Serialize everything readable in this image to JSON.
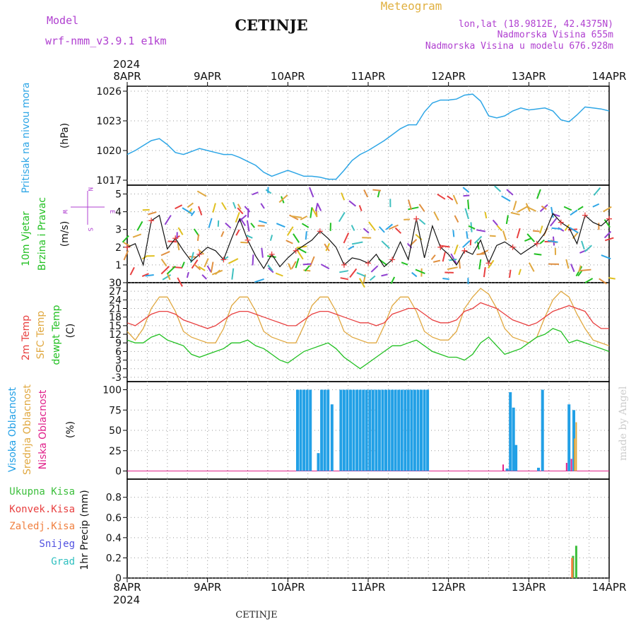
{
  "header": {
    "model_label": "Model",
    "model_value": "wrf-nmm_v3.9.1 e1km",
    "station": "CETINJE",
    "meteogram": "Meteogram",
    "lonlat": "lon,lat (18.9812E, 42.4375N)",
    "height": "Nadmorska Visina 655m",
    "model_height": "Nadmorska Visina u modelu 676.928m",
    "year": "2024",
    "footer_station": "CETINJE",
    "watermark": "made by Angel"
  },
  "axis": {
    "days": [
      "8APR",
      "9APR",
      "10APR",
      "11APR",
      "12APR",
      "13APR",
      "14APR"
    ]
  },
  "panels": {
    "pressure": {
      "label": "Pritisak na nivou mora",
      "unit": "(hPa)",
      "ticks": [
        "1017",
        "1020",
        "1023",
        "1026"
      ]
    },
    "wind": {
      "label1": "10m Vjetar",
      "label2": "Brzina i Pravac",
      "unit": "(m/s)",
      "ticks": [
        "0",
        "1",
        "2",
        "3",
        "4",
        "5"
      ],
      "compass": {
        "n": "N",
        "s": "S",
        "e": "E",
        "w": "W"
      }
    },
    "temp": {
      "label_2m": "2m Temp",
      "label_sfc": "SFC Temp",
      "label_dew": "dewpt Temp",
      "unit": "(C)",
      "ticks": [
        "-3",
        "0",
        "3",
        "6",
        "9",
        "12",
        "15",
        "18",
        "21",
        "24",
        "27",
        "30"
      ]
    },
    "cloud": {
      "label_high": "Visoka Oblacnost",
      "label_mid": "Srednja Oblacnost",
      "label_low": "Niska Oblacnost",
      "unit": "(%)",
      "ticks": [
        "0",
        "25",
        "50",
        "75",
        "100"
      ]
    },
    "precip": {
      "unit": "1hr Precip (mm)",
      "ticks": [
        "0",
        "0.2",
        "0.4",
        "0.6",
        "0.8"
      ],
      "legend": [
        "Ukupna Kisa",
        "Konvek.Kisa",
        "Zaledj.Kisa",
        "Snijeg",
        "Grad"
      ]
    }
  },
  "colors": {
    "pressure": "#2ea6e6",
    "t2m": "#e84040",
    "sfc": "#e0a840",
    "dew": "#22c022",
    "high_cloud": "#22a0e6",
    "mid_cloud": "#e0a840",
    "low_cloud": "#e0208a",
    "precip_total": "#3cbf3c",
    "precip_conv": "#e84040",
    "precip_frz": "#f08040",
    "precip_snow": "#5050e0",
    "precip_grad": "#30c0c0",
    "model_text": "#b040d0",
    "meteogram_text": "#e0b040",
    "info_text": "#b040d0"
  },
  "chart_data": [
    {
      "type": "line",
      "title": "",
      "ylabel": "Pritisak na nivou mora (hPa)",
      "x_unit": "days from 8APR 2024 00UTC",
      "ylim": [
        1016.5,
        1026.5
      ],
      "series": [
        {
          "name": "Pritisak na nivou mora",
          "x": [
            0,
            0.1,
            0.2,
            0.3,
            0.4,
            0.5,
            0.6,
            0.7,
            0.8,
            0.9,
            1.0,
            1.1,
            1.2,
            1.3,
            1.4,
            1.5,
            1.6,
            1.7,
            1.8,
            1.9,
            2.0,
            2.1,
            2.2,
            2.3,
            2.4,
            2.5,
            2.6,
            2.7,
            2.8,
            2.9,
            3.0,
            3.1,
            3.2,
            3.3,
            3.4,
            3.5,
            3.6,
            3.7,
            3.8,
            3.9,
            4.0,
            4.1,
            4.2,
            4.3,
            4.4,
            4.5,
            4.6,
            4.7,
            4.8,
            4.9,
            5.0,
            5.1,
            5.2,
            5.3,
            5.4,
            5.5,
            5.6,
            5.7,
            5.8,
            5.9,
            6.0
          ],
          "y": [
            1019.6,
            1020.0,
            1020.5,
            1021.0,
            1021.2,
            1020.6,
            1019.8,
            1019.6,
            1019.9,
            1020.2,
            1020.0,
            1019.8,
            1019.6,
            1019.6,
            1019.3,
            1018.9,
            1018.5,
            1017.8,
            1017.4,
            1017.7,
            1018.0,
            1017.7,
            1017.4,
            1017.4,
            1017.3,
            1017.1,
            1017.1,
            1018.0,
            1019.0,
            1019.6,
            1020.0,
            1020.5,
            1021.0,
            1021.6,
            1022.2,
            1022.6,
            1022.6,
            1023.9,
            1024.8,
            1025.1,
            1025.1,
            1025.2,
            1025.6,
            1025.7,
            1025.0,
            1023.5,
            1023.3,
            1023.5,
            1024.0,
            1024.3,
            1024.1,
            1024.2,
            1024.3,
            1024.0,
            1023.1,
            1022.9,
            1023.6,
            1024.4,
            1024.3,
            1024.2,
            1024.0
          ]
        }
      ]
    },
    {
      "type": "line",
      "title": "",
      "ylabel": "10m Vjetar Brzina i Pravac (m/s)",
      "ylim": [
        0,
        5.5
      ],
      "series": [
        {
          "name": "10m Vjetar",
          "x": [
            0,
            0.1,
            0.2,
            0.3,
            0.4,
            0.5,
            0.6,
            0.7,
            0.8,
            0.9,
            1.0,
            1.1,
            1.2,
            1.3,
            1.4,
            1.5,
            1.6,
            1.7,
            1.8,
            1.9,
            2.0,
            2.1,
            2.2,
            2.3,
            2.4,
            2.5,
            2.6,
            2.7,
            2.8,
            2.9,
            3.0,
            3.1,
            3.2,
            3.3,
            3.4,
            3.5,
            3.6,
            3.7,
            3.8,
            3.9,
            4.0,
            4.1,
            4.2,
            4.3,
            4.4,
            4.5,
            4.6,
            4.7,
            4.8,
            4.9,
            5.0,
            5.1,
            5.2,
            5.3,
            5.4,
            5.5,
            5.6,
            5.7,
            5.8,
            5.9,
            6.0
          ],
          "y": [
            2.0,
            2.2,
            1.0,
            3.5,
            3.8,
            1.9,
            2.5,
            1.8,
            1.2,
            1.6,
            2.0,
            1.8,
            1.3,
            2.5,
            3.6,
            2.4,
            1.5,
            0.8,
            1.6,
            0.9,
            1.4,
            1.8,
            2.1,
            2.4,
            2.9,
            2.5,
            2.0,
            1.0,
            1.4,
            1.3,
            1.1,
            1.6,
            0.9,
            1.3,
            2.3,
            1.3,
            3.6,
            1.4,
            3.2,
            2.0,
            1.6,
            1.0,
            1.8,
            1.6,
            2.4,
            1.1,
            2.1,
            2.3,
            2.0,
            1.6,
            1.9,
            2.2,
            2.8,
            3.9,
            3.4,
            3.1,
            2.2,
            3.8,
            3.4,
            3.2,
            3.6
          ]
        }
      ]
    },
    {
      "type": "line",
      "title": "",
      "ylabel": "Temp (C)",
      "ylim": [
        -3,
        30
      ],
      "series": [
        {
          "name": "2m Temp",
          "x": [
            0,
            0.1,
            0.2,
            0.3,
            0.4,
            0.5,
            0.6,
            0.7,
            0.8,
            0.9,
            1.0,
            1.1,
            1.2,
            1.3,
            1.4,
            1.5,
            1.6,
            1.7,
            1.8,
            1.9,
            2.0,
            2.1,
            2.2,
            2.3,
            2.4,
            2.5,
            2.6,
            2.7,
            2.8,
            2.9,
            3.0,
            3.1,
            3.2,
            3.3,
            3.4,
            3.5,
            3.6,
            3.7,
            3.8,
            3.9,
            4.0,
            4.1,
            4.2,
            4.3,
            4.4,
            4.5,
            4.6,
            4.7,
            4.8,
            4.9,
            5.0,
            5.1,
            5.2,
            5.3,
            5.4,
            5.5,
            5.6,
            5.7,
            5.8,
            5.9,
            6.0
          ],
          "y": [
            16,
            15,
            17,
            19,
            20,
            20,
            19,
            17,
            16,
            15,
            14,
            15,
            17,
            19,
            20,
            20,
            19,
            18,
            17,
            16,
            15,
            15,
            17,
            19,
            20,
            20,
            19,
            18,
            17,
            16,
            16,
            15,
            16,
            19,
            20,
            21,
            21,
            19,
            17,
            16,
            16,
            17,
            20,
            21,
            23,
            22,
            21,
            19,
            17,
            16,
            15,
            16,
            18,
            20,
            21,
            22,
            21,
            20,
            16,
            14,
            14
          ]
        },
        {
          "name": "SFC Temp",
          "x": [
            0,
            0.1,
            0.2,
            0.3,
            0.4,
            0.5,
            0.6,
            0.7,
            0.8,
            0.9,
            1.0,
            1.1,
            1.2,
            1.3,
            1.4,
            1.5,
            1.6,
            1.7,
            1.8,
            1.9,
            2.0,
            2.1,
            2.2,
            2.3,
            2.4,
            2.5,
            2.6,
            2.7,
            2.8,
            2.9,
            3.0,
            3.1,
            3.2,
            3.3,
            3.4,
            3.5,
            3.6,
            3.7,
            3.8,
            3.9,
            4.0,
            4.1,
            4.2,
            4.3,
            4.4,
            4.5,
            4.6,
            4.7,
            4.8,
            4.9,
            5.0,
            5.1,
            5.2,
            5.3,
            5.4,
            5.5,
            5.6,
            5.7,
            5.8,
            5.9,
            6.0
          ],
          "y": [
            13,
            10,
            14,
            21,
            25,
            25,
            20,
            13,
            11,
            10,
            9,
            9,
            14,
            22,
            25,
            25,
            20,
            13,
            11,
            10,
            9,
            9,
            15,
            22,
            25,
            25,
            20,
            13,
            11,
            10,
            9,
            9,
            15,
            22,
            25,
            25,
            20,
            13,
            11,
            10,
            10,
            13,
            21,
            25,
            28,
            26,
            21,
            14,
            11,
            10,
            9,
            11,
            18,
            24,
            27,
            25,
            19,
            14,
            10,
            9,
            8
          ]
        },
        {
          "name": "dewpt Temp",
          "x": [
            0,
            0.1,
            0.2,
            0.3,
            0.4,
            0.5,
            0.6,
            0.7,
            0.8,
            0.9,
            1.0,
            1.1,
            1.2,
            1.3,
            1.4,
            1.5,
            1.6,
            1.7,
            1.8,
            1.9,
            2.0,
            2.1,
            2.2,
            2.3,
            2.4,
            2.5,
            2.6,
            2.7,
            2.8,
            2.9,
            3.0,
            3.1,
            3.2,
            3.3,
            3.4,
            3.5,
            3.6,
            3.7,
            3.8,
            3.9,
            4.0,
            4.1,
            4.2,
            4.3,
            4.4,
            4.5,
            4.6,
            4.7,
            4.8,
            4.9,
            5.0,
            5.1,
            5.2,
            5.3,
            5.4,
            5.5,
            5.6,
            5.7,
            5.8,
            5.9,
            6.0
          ],
          "y": [
            10,
            9,
            9,
            11,
            12,
            10,
            9,
            8,
            5,
            4,
            5,
            6,
            7,
            9,
            9,
            10,
            8,
            7,
            5,
            3,
            2,
            4,
            6,
            7,
            8,
            9,
            7,
            4,
            2,
            0,
            2,
            4,
            6,
            8,
            8,
            9,
            10,
            8,
            6,
            5,
            4,
            4,
            3,
            5,
            9,
            11,
            8,
            5,
            6,
            7,
            9,
            11,
            12,
            14,
            13,
            9,
            10,
            9,
            8,
            7,
            6
          ]
        }
      ]
    },
    {
      "type": "bar",
      "title": "",
      "ylabel": "Oblacnost (%)",
      "ylim": [
        0,
        100
      ],
      "series": [
        {
          "name": "Visoka Oblacnost",
          "x": [
            2.12,
            2.16,
            2.2,
            2.24,
            2.28,
            2.38,
            2.42,
            2.46,
            2.5,
            2.55,
            2.66,
            2.7,
            2.74,
            2.78,
            2.82,
            2.86,
            2.9,
            2.94,
            2.98,
            3.02,
            3.06,
            3.1,
            3.14,
            3.18,
            3.22,
            3.26,
            3.3,
            3.34,
            3.38,
            3.42,
            3.46,
            3.5,
            3.54,
            3.58,
            3.62,
            3.66,
            3.7,
            3.74,
            4.73,
            4.77,
            4.81,
            4.84,
            5.12,
            5.17,
            5.5,
            5.56
          ],
          "values": [
            100,
            100,
            100,
            100,
            100,
            22,
            100,
            100,
            100,
            82,
            100,
            100,
            100,
            100,
            100,
            100,
            100,
            100,
            100,
            100,
            100,
            100,
            100,
            100,
            100,
            100,
            100,
            100,
            100,
            100,
            100,
            100,
            100,
            100,
            100,
            100,
            100,
            100,
            3,
            97,
            78,
            32,
            4,
            100,
            82,
            75
          ]
        },
        {
          "name": "Srednja Oblacnost",
          "x": [
            5.57,
            5.59
          ],
          "values": [
            40,
            60
          ]
        },
        {
          "name": "Niska Oblacnost",
          "x": [
            4.68,
            5.47,
            5.53
          ],
          "values": [
            8,
            10,
            15
          ]
        }
      ]
    },
    {
      "type": "bar",
      "title": "",
      "ylabel": "1hr Precip (mm)",
      "ylim": [
        0,
        1.0
      ],
      "series": [
        {
          "name": "Ukupna Kisa",
          "x": [
            5.55,
            5.59
          ],
          "values": [
            0.22,
            0.32
          ]
        },
        {
          "name": "Zaledj.Kisa",
          "x": [
            5.54
          ],
          "values": [
            0.2
          ]
        }
      ]
    }
  ]
}
